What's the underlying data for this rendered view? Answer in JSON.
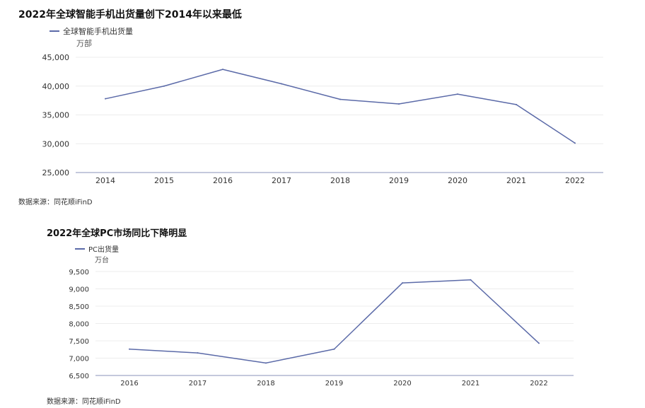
{
  "charts": [
    {
      "title": "2022年全球智能手机出货量创下2014年以来最低",
      "legend": "全球智能手机出货量",
      "unit": "万部",
      "source": "数据来源：同花顺iFinD"
    },
    {
      "title": "2022年全球PC市场同比下降明显",
      "legend": "PC出货量",
      "unit": "万台",
      "source": "数据来源：同花顺iFinD"
    }
  ],
  "chart_data": [
    {
      "type": "line",
      "title": "2022年全球智能手机出货量创下2014年以来最低",
      "xlabel": "",
      "ylabel": "万部",
      "categories": [
        "2014",
        "2015",
        "2016",
        "2017",
        "2018",
        "2019",
        "2020",
        "2021",
        "2022"
      ],
      "series": [
        {
          "name": "全球智能手机出货量",
          "values": [
            37800,
            40000,
            42900,
            40400,
            37700,
            36900,
            38600,
            36800,
            30100
          ]
        }
      ],
      "ylim": [
        25000,
        45000
      ],
      "yticks": [
        25000,
        30000,
        35000,
        40000,
        45000
      ],
      "ytick_labels": [
        "25,000",
        "30,000",
        "35,000",
        "40,000",
        "45,000"
      ],
      "grid": true,
      "legend_position": "top-left",
      "color": "#5b6aa8"
    },
    {
      "type": "line",
      "title": "2022年全球PC市场同比下降明显",
      "xlabel": "",
      "ylabel": "万台",
      "categories": [
        "2016",
        "2017",
        "2018",
        "2019",
        "2020",
        "2021",
        "2022"
      ],
      "series": [
        {
          "name": "PC出货量",
          "values": [
            7260,
            7150,
            6860,
            7260,
            9170,
            9260,
            7430
          ]
        }
      ],
      "ylim": [
        6500,
        9500
      ],
      "yticks": [
        6500,
        7000,
        7500,
        8000,
        8500,
        9000,
        9500
      ],
      "ytick_labels": [
        "6,500",
        "7,000",
        "7,500",
        "8,000",
        "8,500",
        "9,000",
        "9,500"
      ],
      "grid": true,
      "legend_position": "top-left",
      "color": "#5b6aa8"
    }
  ]
}
